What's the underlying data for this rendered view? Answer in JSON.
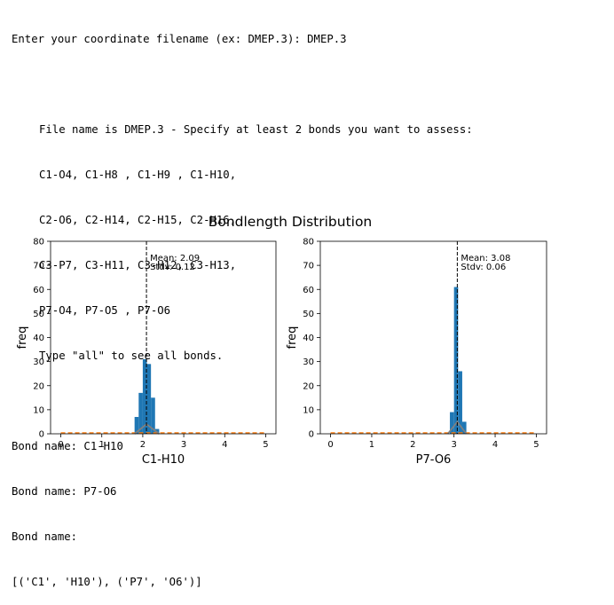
{
  "console": {
    "prompt_line": "Enter your coordinate filename (ex: DMEP.3): DMEP.3",
    "info_lines": [
      "File name is DMEP.3 - Specify at least 2 bonds you want to assess:",
      "C1-O4, C1-H8 , C1-H9 , C1-H10,",
      "C2-O6, C2-H14, C2-H15, C2-H16,",
      "C3-P7, C3-H11, C3-H12, C3-H13,",
      "P7-O4, P7-O5 , P7-O6",
      "Type \"all\" to see all bonds."
    ],
    "input_lines": [
      "Bond name: C1-H10",
      "Bond name: P7-O6",
      "Bond name:",
      "[('C1', 'H10'), ('P7', 'O6')]"
    ]
  },
  "figure": {
    "title": "Bondlength Distribution"
  },
  "colors": {
    "bar": "#1f77b4",
    "kde": "#ff7f0e",
    "curve": "#808080",
    "mean_line": "#000000"
  },
  "chart_data": [
    {
      "type": "bar",
      "xlabel": "C1-H10",
      "ylabel": "freq",
      "xlim": [
        -0.25,
        5.25
      ],
      "ylim": [
        0,
        80
      ],
      "xticks": [
        0,
        1,
        2,
        3,
        4,
        5
      ],
      "yticks": [
        0,
        10,
        20,
        30,
        40,
        50,
        60,
        70,
        80
      ],
      "bin_width": 0.1,
      "bins": [
        {
          "x": 1.85,
          "value": 7
        },
        {
          "x": 1.95,
          "value": 17
        },
        {
          "x": 2.05,
          "value": 31
        },
        {
          "x": 2.15,
          "value": 29
        },
        {
          "x": 2.25,
          "value": 15
        },
        {
          "x": 2.35,
          "value": 2
        }
      ],
      "mean": 2.09,
      "stdv": 0.12,
      "mean_label": "Mean: 2.09",
      "stdv_label": "Stdv: 0.12",
      "fit_curve": [
        [
          1.8,
          0
        ],
        [
          2.09,
          4
        ],
        [
          2.4,
          0
        ]
      ]
    },
    {
      "type": "bar",
      "xlabel": "P7-O6",
      "ylabel": "freq",
      "xlim": [
        -0.25,
        5.25
      ],
      "ylim": [
        0,
        80
      ],
      "xticks": [
        0,
        1,
        2,
        3,
        4,
        5
      ],
      "yticks": [
        0,
        10,
        20,
        30,
        40,
        50,
        60,
        70,
        80
      ],
      "bin_width": 0.1,
      "bins": [
        {
          "x": 2.95,
          "value": 9
        },
        {
          "x": 3.05,
          "value": 61
        },
        {
          "x": 3.15,
          "value": 26
        },
        {
          "x": 3.25,
          "value": 5
        }
      ],
      "mean": 3.08,
      "stdv": 0.06,
      "mean_label": "Mean: 3.08",
      "stdv_label": "Stdv: 0.06",
      "fit_curve": [
        [
          2.85,
          0
        ],
        [
          3.08,
          5
        ],
        [
          3.3,
          0
        ]
      ]
    }
  ]
}
